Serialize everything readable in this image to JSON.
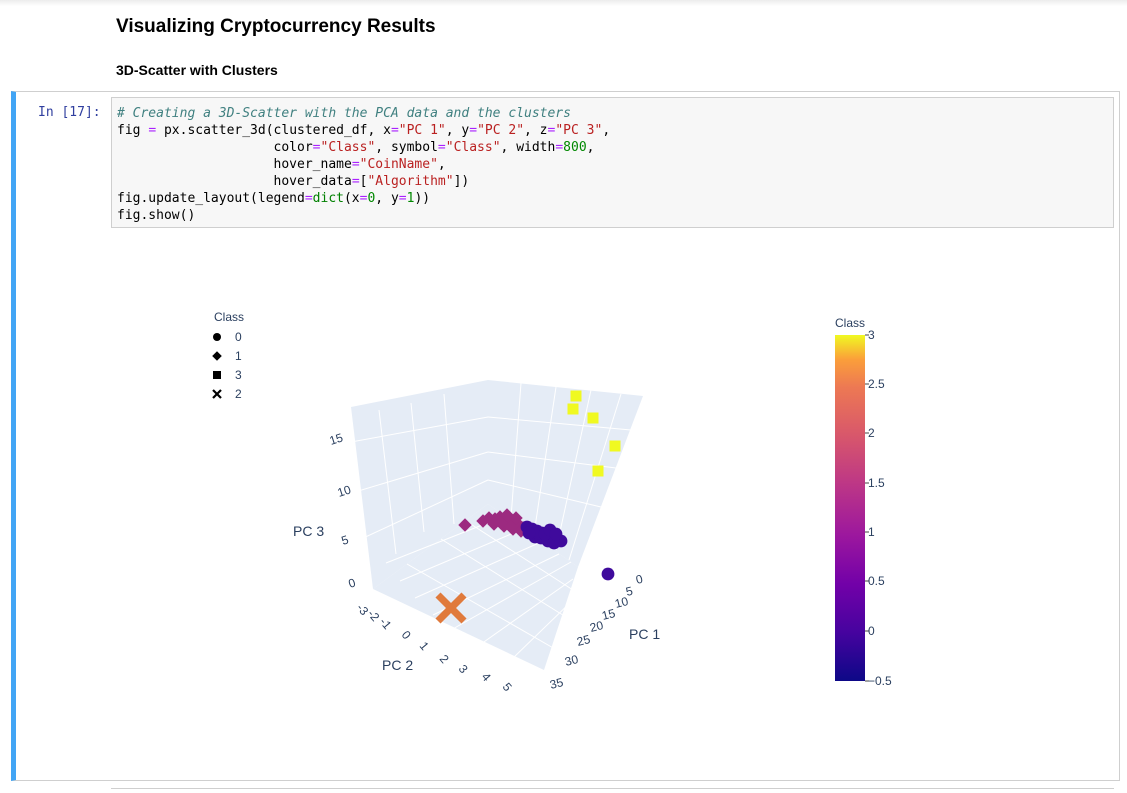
{
  "notebook": {
    "heading": "Visualizing Cryptocurrency Results",
    "subheading": "3D-Scatter with Clusters",
    "cell_prompt": "In [17]:",
    "code_lines": [
      [
        {
          "t": "# Creating a 3D-Scatter with the PCA data and the clusters",
          "c": "com"
        }
      ],
      [
        {
          "t": "fig "
        },
        {
          "t": "=",
          "c": "op"
        },
        {
          "t": " px.scatter_3d(clustered_df, x"
        },
        {
          "t": "=",
          "c": "op"
        },
        {
          "t": "\"PC 1\"",
          "c": "str"
        },
        {
          "t": ", y"
        },
        {
          "t": "=",
          "c": "op"
        },
        {
          "t": "\"PC 2\"",
          "c": "str"
        },
        {
          "t": ", z"
        },
        {
          "t": "=",
          "c": "op"
        },
        {
          "t": "\"PC 3\"",
          "c": "str"
        },
        {
          "t": ","
        }
      ],
      [
        {
          "t": "                    color"
        },
        {
          "t": "=",
          "c": "op"
        },
        {
          "t": "\"Class\"",
          "c": "str"
        },
        {
          "t": ", symbol"
        },
        {
          "t": "=",
          "c": "op"
        },
        {
          "t": "\"Class\"",
          "c": "str"
        },
        {
          "t": ", width"
        },
        {
          "t": "=",
          "c": "op"
        },
        {
          "t": "800",
          "c": "num"
        },
        {
          "t": ","
        }
      ],
      [
        {
          "t": "                    hover_name"
        },
        {
          "t": "=",
          "c": "op"
        },
        {
          "t": "\"CoinName\"",
          "c": "str"
        },
        {
          "t": ","
        }
      ],
      [
        {
          "t": "                    hover_data"
        },
        {
          "t": "=",
          "c": "op"
        },
        {
          "t": "["
        },
        {
          "t": "\"Algorithm\"",
          "c": "str"
        },
        {
          "t": "])"
        }
      ],
      [
        {
          "t": "fig.update_layout(legend"
        },
        {
          "t": "=",
          "c": "op"
        },
        {
          "t": "dict",
          "c": "builtin"
        },
        {
          "t": "(x"
        },
        {
          "t": "=",
          "c": "op"
        },
        {
          "t": "0",
          "c": "num"
        },
        {
          "t": ", y"
        },
        {
          "t": "=",
          "c": "op"
        },
        {
          "t": "1",
          "c": "num"
        },
        {
          "t": "))"
        }
      ],
      [
        {
          "t": "fig.show()"
        }
      ]
    ]
  },
  "chart_data": {
    "type": "scatter",
    "legend": {
      "title": "Class",
      "items": [
        {
          "label": "0",
          "symbol": "circle"
        },
        {
          "label": "1",
          "symbol": "diamond"
        },
        {
          "label": "3",
          "symbol": "square"
        },
        {
          "label": "2",
          "symbol": "x"
        }
      ],
      "placement": "top-left"
    },
    "axes": {
      "x": {
        "label": "PC 1",
        "ticks": [
          "0",
          "5",
          "10",
          "15",
          "20",
          "25",
          "30",
          "35"
        ]
      },
      "y": {
        "label": "PC 2",
        "ticks": [
          "-3",
          "-2",
          "-1",
          "0",
          "1",
          "2",
          "3",
          "4",
          "5"
        ]
      },
      "z": {
        "label": "PC 3",
        "ticks": [
          "0",
          "5",
          "10",
          "15"
        ]
      }
    },
    "colorbar": {
      "title": "Class",
      "ticks": [
        "3",
        "2.5",
        "2",
        "1.5",
        "1",
        "0.5",
        "0",
        "−0.5"
      ],
      "range": [
        -0.5,
        3
      ]
    },
    "series": [
      {
        "name": "0",
        "symbol": "circle",
        "color": "#3f0a9c"
      },
      {
        "name": "1",
        "symbol": "diamond",
        "color": "#9c2a80"
      },
      {
        "name": "3",
        "symbol": "square",
        "color": "#f0f921"
      },
      {
        "name": "2",
        "symbol": "x",
        "color": "#e07a3c"
      }
    ]
  }
}
